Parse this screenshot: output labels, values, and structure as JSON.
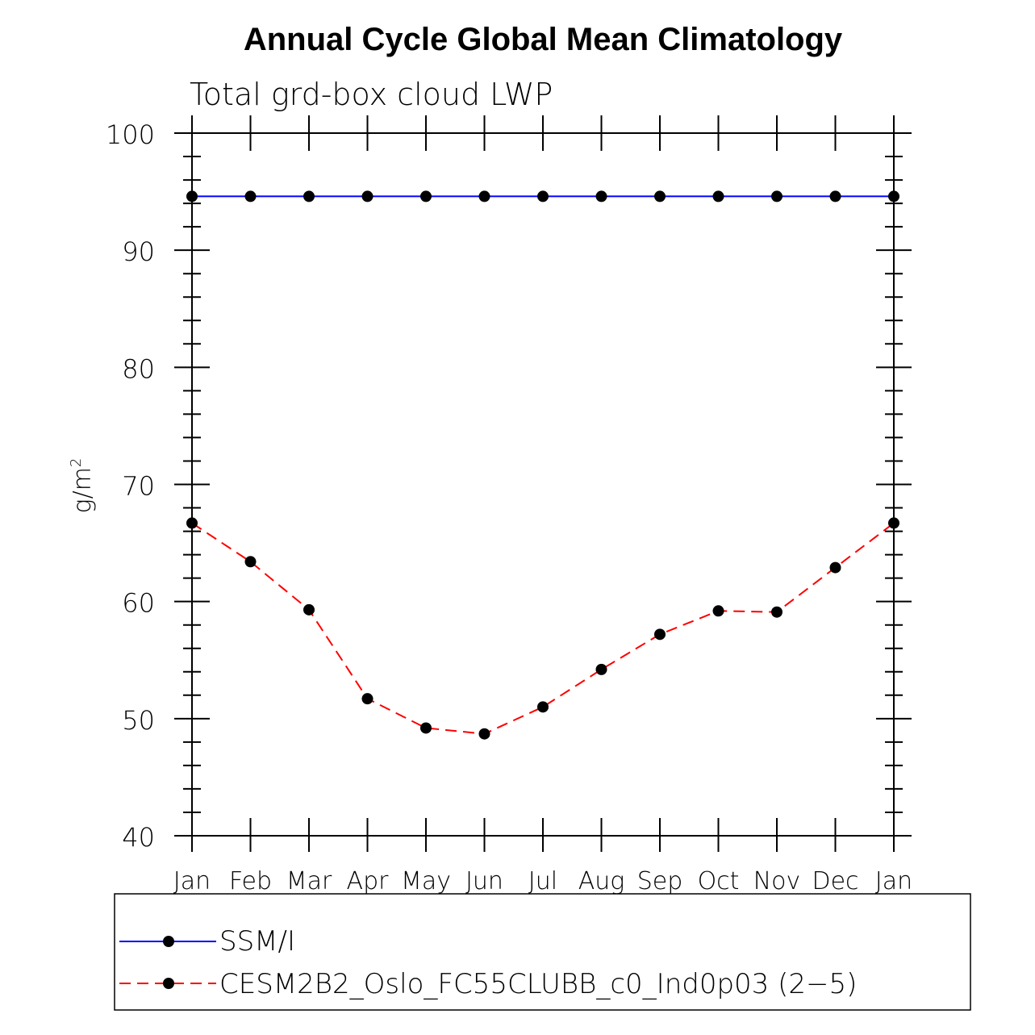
{
  "chart_data": {
    "type": "line",
    "title": "Annual Cycle Global Mean Climatology",
    "subtitle": "Total grd-box cloud LWP",
    "ylabel": "g/m",
    "ylabel_superscript": "2",
    "xlabel": "",
    "categories": [
      "Jan",
      "Feb",
      "Mar",
      "Apr",
      "May",
      "Jun",
      "Jul",
      "Aug",
      "Sep",
      "Oct",
      "Nov",
      "Dec",
      "Jan"
    ],
    "ylim": [
      40,
      100
    ],
    "yticks": [
      40,
      50,
      60,
      70,
      80,
      90,
      100
    ],
    "ytick_labels": [
      "40",
      "50",
      "60",
      "70",
      "80",
      "90",
      "100"
    ],
    "grid": false,
    "legend_position": "bottom",
    "series": [
      {
        "name": "SSM/I",
        "color": "#0000ff",
        "dash": "solid",
        "marker": "filled-circle",
        "values": [
          94.6,
          94.6,
          94.6,
          94.6,
          94.6,
          94.6,
          94.6,
          94.6,
          94.6,
          94.6,
          94.6,
          94.6,
          94.6
        ]
      },
      {
        "name": "CESM2B2_Oslo_FC55CLUBB_c0_Ind0p03 (2−5)",
        "color": "#ff0000",
        "dash": "dashed",
        "marker": "filled-circle",
        "values": [
          66.7,
          63.4,
          59.3,
          51.7,
          49.2,
          48.7,
          51.0,
          54.2,
          57.2,
          59.2,
          59.1,
          62.9,
          66.7
        ]
      }
    ]
  }
}
